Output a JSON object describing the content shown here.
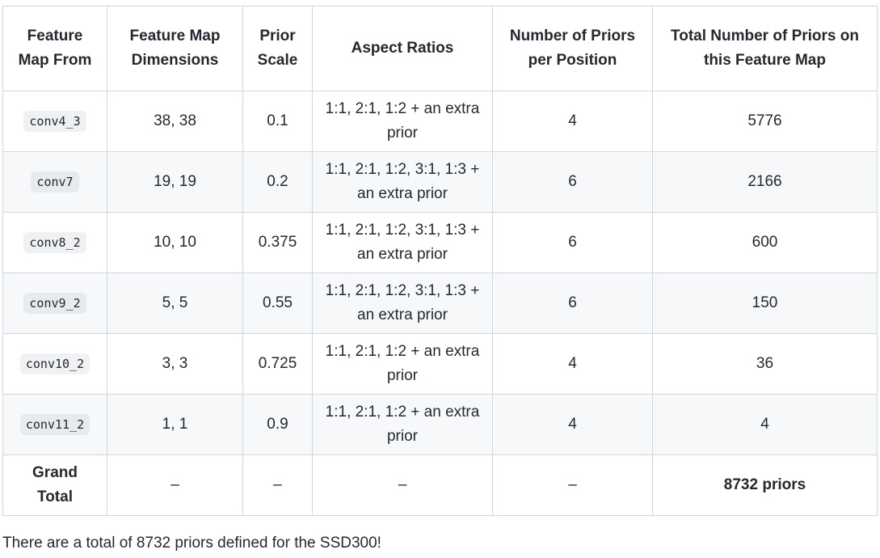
{
  "table": {
    "headers": [
      "Feature Map From",
      "Feature Map Dimensions",
      "Prior Scale",
      "Aspect Ratios",
      "Number of Priors per Position",
      "Total Number of Priors on this Feature Map"
    ],
    "rows": [
      {
        "layer": "conv4_3",
        "dims": "38, 38",
        "scale": "0.1",
        "ratios": "1:1, 2:1, 1:2 + an extra prior",
        "per_pos": "4",
        "total": "5776"
      },
      {
        "layer": "conv7",
        "dims": "19, 19",
        "scale": "0.2",
        "ratios": "1:1, 2:1, 1:2, 3:1, 1:3 + an extra prior",
        "per_pos": "6",
        "total": "2166"
      },
      {
        "layer": "conv8_2",
        "dims": "10, 10",
        "scale": "0.375",
        "ratios": "1:1, 2:1, 1:2, 3:1, 1:3 + an extra prior",
        "per_pos": "6",
        "total": "600"
      },
      {
        "layer": "conv9_2",
        "dims": "5, 5",
        "scale": "0.55",
        "ratios": "1:1, 2:1, 1:2, 3:1, 1:3 + an extra prior",
        "per_pos": "6",
        "total": "150"
      },
      {
        "layer": "conv10_2",
        "dims": "3, 3",
        "scale": "0.725",
        "ratios": "1:1, 2:1, 1:2 + an extra prior",
        "per_pos": "4",
        "total": "36"
      },
      {
        "layer": "conv11_2",
        "dims": "1, 1",
        "scale": "0.9",
        "ratios": "1:1, 2:1, 1:2 + an extra prior",
        "per_pos": "4",
        "total": "4"
      }
    ],
    "grand_total": {
      "label": "Grand Total",
      "dims": "–",
      "scale": "–",
      "ratios": "–",
      "per_pos": "–",
      "total": "8732 priors"
    }
  },
  "note": "There are a total of 8732 priors defined for the SSD300!",
  "colors": {
    "border": "#d0d7de",
    "alt_row": "#f6f8fa",
    "text": "#24292f"
  }
}
